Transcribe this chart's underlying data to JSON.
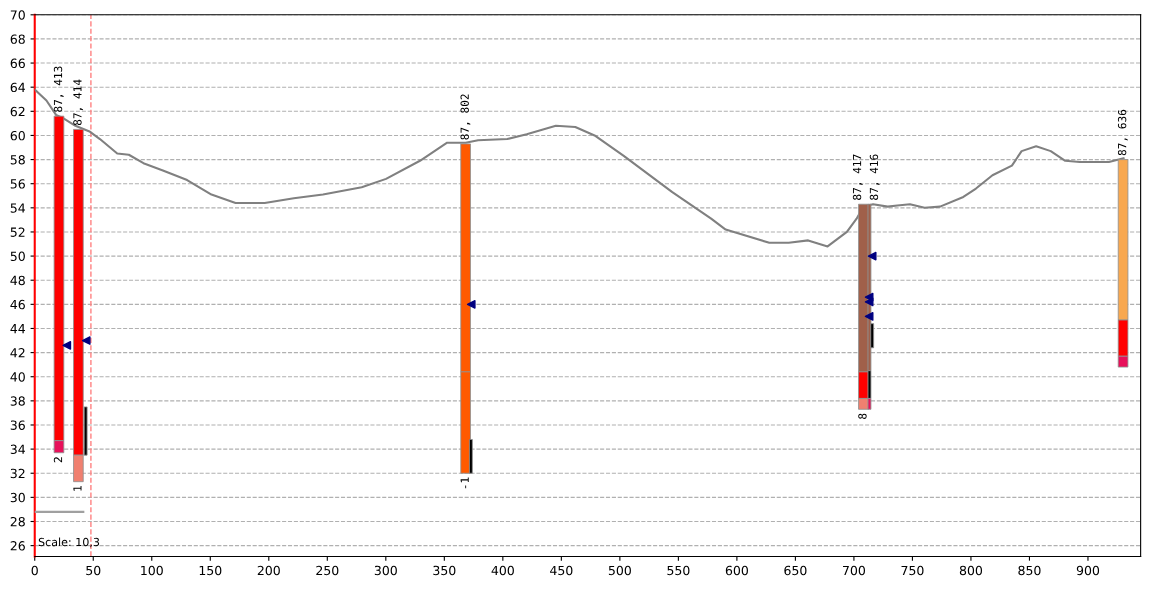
{
  "chart_data": {
    "type": "line",
    "xlim": [
      0,
      945
    ],
    "ylim": [
      25.1,
      70
    ],
    "xticks": [
      0,
      50,
      100,
      150,
      200,
      250,
      300,
      350,
      400,
      450,
      500,
      550,
      600,
      650,
      700,
      750,
      800,
      850,
      900
    ],
    "yticks": [
      26,
      28,
      30,
      32,
      34,
      36,
      38,
      40,
      42,
      44,
      46,
      48,
      50,
      52,
      54,
      56,
      58,
      60,
      62,
      64,
      66,
      68,
      70
    ],
    "grid": "y",
    "legend": false,
    "series": [
      {
        "color": "#808080",
        "marker": "none",
        "x": [
          0,
          10,
          18.2,
          24.9,
          34.8,
          47.3,
          55.7,
          70.5,
          80.4,
          92.9,
          109.5,
          130.2,
          151,
          171.6,
          196.5,
          221.4,
          246.3,
          279.4,
          300.2,
          329.2,
          352.4,
          362.4,
          368.2,
          378.9,
          403.8,
          420.4,
          445.3,
          461.9,
          478.4,
          503.3,
          544.8,
          578,
          590.4,
          627.7,
          644.3,
          660.9,
          677.5,
          694,
          702.3,
          708.1,
          716.4,
          728.9,
          737.1,
          747.9,
          760.4,
          773.6,
          793.5,
          804.3,
          818.4,
          835,
          843.3,
          855.7,
          868.2,
          880.6,
          893,
          917.9,
          930.4
        ],
        "values": [
          63.8,
          62.9,
          61.7,
          61.4,
          60.8,
          60.3,
          59.7,
          58.5,
          58.4,
          57.7,
          57.1,
          56.3,
          55.1,
          54.4,
          54.4,
          54.8,
          55.1,
          55.7,
          56.4,
          57.9,
          59.4,
          59.4,
          59.4,
          59.6,
          59.7,
          60.1,
          60.8,
          60.7,
          60.0,
          58.3,
          55.3,
          53.1,
          52.2,
          51.1,
          51.1,
          51.3,
          50.8,
          52.0,
          53.1,
          54.1,
          54.3,
          54.1,
          54.2,
          54.3,
          54.0,
          54.1,
          54.9,
          55.6,
          56.7,
          57.5,
          58.7,
          59.1,
          58.7,
          57.9,
          57.8,
          57.8,
          58.1
        ]
      },
      {
        "type": "bar",
        "x": [
          20.7,
          37.3,
          368.2,
          708.1,
          930
        ],
        "base": [
          34.7,
          33.5,
          40.4,
          40.4,
          44.7
        ],
        "values": [
          26.9,
          27.0,
          18.9,
          13.9,
          13.3
        ],
        "colors": [
          "#ff0000",
          "#ff0000",
          "#ff5a00",
          "#a0604a",
          "#f8a850"
        ]
      },
      {
        "type": "bar",
        "x": [
          20.7,
          37.3,
          368.2,
          708.1,
          930
        ],
        "base": [
          33.7,
          31.3,
          32.0,
          38.2,
          41.7
        ],
        "values": [
          1.0,
          2.2,
          8.4,
          2.2,
          3.0
        ],
        "colors": [
          "#e8105a",
          "#f08070",
          "#ff5a00",
          "#ff0000",
          "#ff0000"
        ]
      },
      {
        "type": "bar",
        "x": [
          708.1,
          930
        ],
        "base": [
          37.3,
          40.8
        ],
        "values": [
          0.9,
          0.9
        ],
        "colors": [
          "#f08070",
          "#e8105a"
        ]
      },
      {
        "type": "bar",
        "x": [
          43.5,
          372.7,
          713.3,
          715.6
        ],
        "base": [
          33.5,
          32.0,
          40.5,
          42.4
        ],
        "values": [
          4.0,
          2.8,
          13.8,
          2.0
        ],
        "colors": [
          "#000000",
          "#000000",
          "#a0604a",
          "#000000"
        ]
      },
      {
        "type": "bar",
        "x": [
          713.3
        ],
        "base": [
          38.2
        ],
        "values": [
          2.3
        ],
        "color": "#000000"
      },
      {
        "type": "bar",
        "x": [
          713.3
        ],
        "base": [
          37.3
        ],
        "values": [
          0.9
        ],
        "color": "#e8105a"
      },
      {
        "type": "scatter",
        "color": "#000080",
        "marker": "triangle",
        "x": [
          27.4,
          44,
          373,
          715.6,
          713,
          713,
          713
        ],
        "values": [
          42.6,
          43.0,
          46.0,
          50.0,
          46.6,
          46.2,
          45.0
        ]
      },
      {
        "type": "line",
        "color": "#a0a0a0",
        "marker": "none",
        "x": [
          0,
          41.5
        ],
        "values": [
          28.8,
          28.8
        ]
      }
    ],
    "ref_lines": [
      {
        "axis": "x",
        "value": 48,
        "color": "#ff8080",
        "line_style": "dashed"
      }
    ],
    "annotations": [
      {
        "text": "87, 413",
        "x": 20.7,
        "y": 61.6
      },
      {
        "text": "87, 414",
        "x": 37.3,
        "y": 60.5
      },
      {
        "text": "87, 802",
        "x": 368.2,
        "y": 59.3
      },
      {
        "text": "87, 417",
        "x": 708.1,
        "y": 54.3
      },
      {
        "text": "87, 416",
        "x": 713.3,
        "y": 54.3
      },
      {
        "text": "87, 636",
        "x": 930,
        "y": 58.0
      },
      {
        "text": "2",
        "x": 20.7,
        "y": 33.7
      },
      {
        "text": "1",
        "x": 37.3,
        "y": 31.3
      },
      {
        "text": "-1",
        "x": 368.2,
        "y": 32.0
      },
      {
        "text": "8",
        "x": 708.1,
        "y": 37.3
      },
      "Scale: 10,3"
    ]
  }
}
